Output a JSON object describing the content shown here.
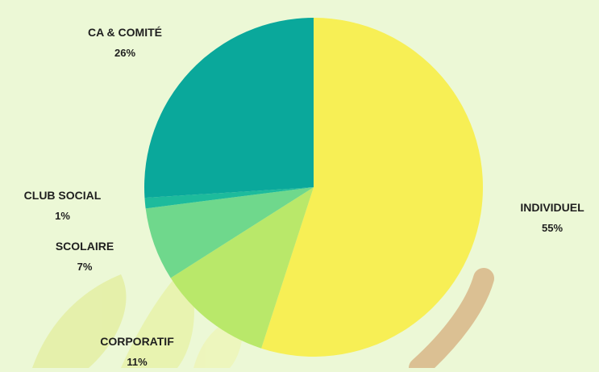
{
  "chart_data": {
    "type": "pie",
    "slices": [
      {
        "label": "INDIVIDUEL",
        "value": 55,
        "value_label": "55%",
        "color": "#f7ef55"
      },
      {
        "label": "CORPORATIF",
        "value": 11,
        "value_label": "11%",
        "color": "#b9e86a"
      },
      {
        "label": "SCOLAIRE",
        "value": 7,
        "value_label": "7%",
        "color": "#6fd88c"
      },
      {
        "label": "CLUB SOCIAL",
        "value": 1,
        "value_label": "1%",
        "color": "#1dbb9c"
      },
      {
        "label": "CA & COMITÉ",
        "value": 26,
        "value_label": "26%",
        "color": "#0aa89b"
      }
    ],
    "start_angle": "12 o'clock",
    "direction": "clockwise",
    "legend": "none",
    "label_placement": "outside"
  },
  "decoration": {
    "hand_color": "#d9b98c",
    "leaf_color": "#e8f0a8"
  }
}
